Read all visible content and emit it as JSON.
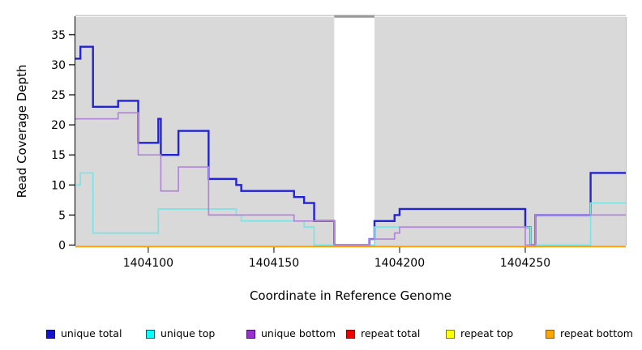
{
  "figure": {
    "xlabel": "Coordinate in Reference Genome",
    "ylabel": "Read Coverage Depth"
  },
  "chart_data": {
    "type": "line",
    "subtype": "step",
    "title": "",
    "xlabel": "Coordinate in Reference Genome",
    "ylabel": "Read Coverage Depth",
    "xlim": [
      1404071,
      1404290
    ],
    "ylim": [
      0,
      38
    ],
    "x_ticks": [
      1404100,
      1404150,
      1404200,
      1404250
    ],
    "y_ticks": [
      0,
      5,
      10,
      15,
      20,
      25,
      30,
      35
    ],
    "grid": false,
    "legend_position": "bottom",
    "plot_background": "#d9d9d9",
    "masked_region": {
      "x_start": 1404174,
      "x_end": 1404190,
      "cap_color": "#999999"
    },
    "series": [
      {
        "name": "unique total",
        "color": "#2222d6",
        "line_width": 2.4,
        "steps": [
          [
            1404071,
            31
          ],
          [
            1404073,
            33
          ],
          [
            1404078,
            23
          ],
          [
            1404088,
            24
          ],
          [
            1404096,
            17
          ],
          [
            1404104,
            21
          ],
          [
            1404105,
            15
          ],
          [
            1404112,
            19
          ],
          [
            1404124,
            11
          ],
          [
            1404135,
            10
          ],
          [
            1404137,
            9
          ],
          [
            1404158,
            8
          ],
          [
            1404162,
            7
          ],
          [
            1404166,
            4
          ],
          [
            1404174,
            0
          ],
          [
            1404188,
            1
          ],
          [
            1404190,
            4
          ],
          [
            1404198,
            5
          ],
          [
            1404200,
            6
          ],
          [
            1404250,
            3
          ],
          [
            1404252,
            0
          ],
          [
            1404254,
            5
          ],
          [
            1404276,
            12
          ]
        ]
      },
      {
        "name": "unique top",
        "color": "#7be4e4",
        "line_width": 1.7,
        "steps": [
          [
            1404071,
            10
          ],
          [
            1404073,
            12
          ],
          [
            1404078,
            2
          ],
          [
            1404104,
            6
          ],
          [
            1404135,
            5
          ],
          [
            1404137,
            4
          ],
          [
            1404162,
            3
          ],
          [
            1404166,
            0
          ],
          [
            1404190,
            3
          ],
          [
            1404252,
            0
          ],
          [
            1404276,
            7
          ]
        ]
      },
      {
        "name": "unique bottom",
        "color": "#b385da",
        "line_width": 1.7,
        "steps": [
          [
            1404071,
            21
          ],
          [
            1404088,
            22
          ],
          [
            1404096,
            15
          ],
          [
            1404105,
            9
          ],
          [
            1404112,
            13
          ],
          [
            1404124,
            5
          ],
          [
            1404158,
            4
          ],
          [
            1404174,
            0
          ],
          [
            1404188,
            1
          ],
          [
            1404198,
            2
          ],
          [
            1404200,
            3
          ],
          [
            1404250,
            0
          ],
          [
            1404254,
            5
          ]
        ]
      },
      {
        "name": "repeat total",
        "color": "#dd0000",
        "line_width": 1.5,
        "steps": [
          [
            1404071,
            0
          ]
        ]
      },
      {
        "name": "repeat top",
        "color": "#ffff00",
        "line_width": 1.5,
        "steps": [
          [
            1404071,
            0
          ]
        ]
      },
      {
        "name": "repeat bottom",
        "color": "#ff9d09",
        "line_width": 2.0,
        "steps": [
          [
            1404071,
            0
          ]
        ]
      }
    ],
    "legend": [
      {
        "label": "unique total",
        "fill": "#1414cc",
        "border": "#000082"
      },
      {
        "label": "unique top",
        "fill": "#00ffff",
        "border": "#005f5f"
      },
      {
        "label": "unique bottom",
        "fill": "#9932cc",
        "border": "#4b0b72"
      },
      {
        "label": "repeat total",
        "fill": "#ee0000",
        "border": "#7e0000"
      },
      {
        "label": "repeat top",
        "fill": "#ffff00",
        "border": "#7e7e00"
      },
      {
        "label": "repeat bottom",
        "fill": "#ffa500",
        "border": "#8a5a00"
      }
    ]
  }
}
